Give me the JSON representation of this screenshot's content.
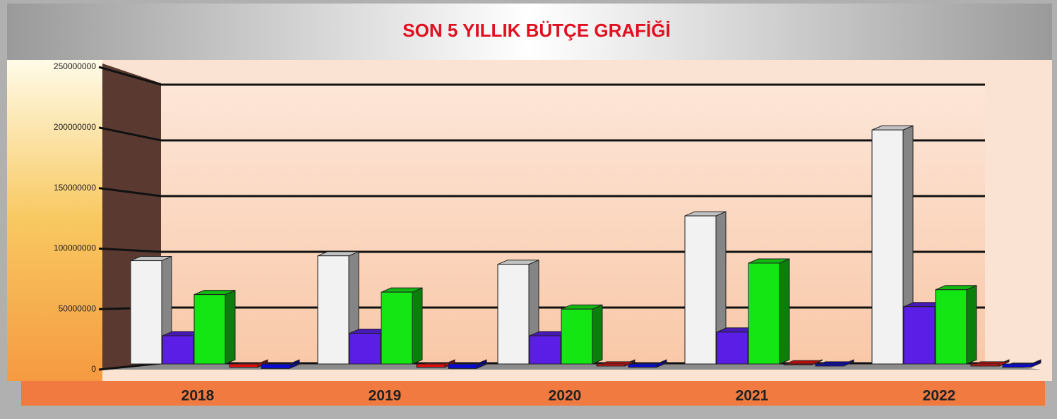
{
  "chart_data": {
    "type": "bar3d",
    "title": "SON 5 YILLIK BÜTÇE GRAFİĞİ",
    "categories": [
      "2018",
      "2019",
      "2020",
      "2021",
      "2022"
    ],
    "series": [
      {
        "color": "#f2f2f2",
        "values": [
          90000000,
          94000000,
          87000000,
          127000000,
          198000000
        ]
      },
      {
        "color": "#5a1ee6",
        "values": [
          28000000,
          30000000,
          28000000,
          31000000,
          52000000
        ]
      },
      {
        "color": "#14e614",
        "values": [
          62000000,
          64000000,
          50000000,
          88000000,
          66000000
        ]
      },
      {
        "color": "#e01010",
        "values": [
          2000000,
          2000000,
          3000000,
          4000000,
          3000000
        ]
      },
      {
        "color": "#0a0ad0",
        "values": [
          1000000,
          1000000,
          2000000,
          3000000,
          2000000
        ]
      }
    ],
    "ylim": [
      0,
      250000000
    ],
    "yticks": [
      0,
      50000000,
      100000000,
      150000000,
      200000000,
      250000000
    ],
    "grid": true
  }
}
